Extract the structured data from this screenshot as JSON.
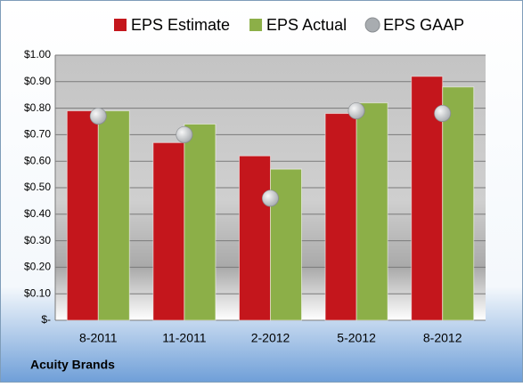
{
  "chart_data": {
    "type": "bar",
    "footer": "Acuity Brands",
    "categories": [
      "8-2011",
      "11-2011",
      "2-2012",
      "5-2012",
      "8-2012"
    ],
    "series": [
      {
        "name": "EPS Estimate",
        "color": "#c4161c",
        "type": "bar",
        "values": [
          0.79,
          0.67,
          0.62,
          0.78,
          0.92
        ]
      },
      {
        "name": "EPS Actual",
        "color": "#8caf48",
        "type": "bar",
        "values": [
          0.79,
          0.74,
          0.57,
          0.82,
          0.88
        ]
      },
      {
        "name": "EPS GAAP",
        "color": "#a8acb0",
        "type": "scatter",
        "values": [
          0.77,
          0.7,
          0.46,
          0.79,
          0.78
        ]
      }
    ],
    "ylim": [
      0,
      1
    ],
    "yticks": [
      {
        "value": 0,
        "label": "$-"
      },
      {
        "value": 0.1,
        "label": "$0.10"
      },
      {
        "value": 0.2,
        "label": "$0.20"
      },
      {
        "value": 0.3,
        "label": "$0.30"
      },
      {
        "value": 0.4,
        "label": "$0.40"
      },
      {
        "value": 0.5,
        "label": "$0.50"
      },
      {
        "value": 0.6,
        "label": "$0.60"
      },
      {
        "value": 0.7,
        "label": "$0.70"
      },
      {
        "value": 0.8,
        "label": "$0.80"
      },
      {
        "value": 0.9,
        "label": "$0.90"
      },
      {
        "value": 1,
        "label": "$1.00"
      }
    ],
    "grid": true,
    "legend": "top"
  }
}
